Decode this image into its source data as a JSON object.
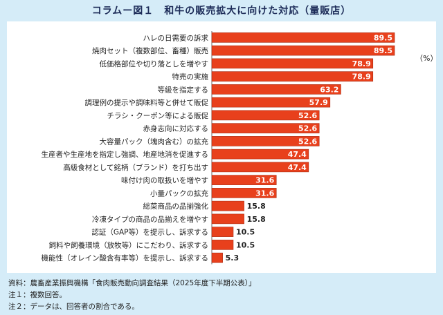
{
  "title": "コラムー図１　和牛の販売拡大に向けた対応（量販店）",
  "chart_data": {
    "type": "bar",
    "orientation": "horizontal",
    "title": "コラムー図１　和牛の販売拡大に向けた対応（量販店）",
    "unit": "（%）",
    "categories": [
      "ハレの日需要の訴求",
      "焼肉セット（複数部位、畜種）販売",
      "低価格部位や切り落としを増やす",
      "特売の実施",
      "等級を指定する",
      "調理例の提示や調味料等と併せて販促",
      "チラシ・クーポン等による販促",
      "赤身志向に対応する",
      "大容量パック（塊肉含む）の拡充",
      "生産者や生産地を指定し強調、地産地消を促進する",
      "高級食材として銘柄（ブランド）を打ち出す",
      "味付け肉の取扱いを増やす",
      "小量パックの拡充",
      "総菜商品の品揃強化",
      "冷凍タイプの商品の品揃えを増やす",
      "認証（GAP等）を提示し、訴求する",
      "飼料や飼養環境（放牧等）にこだわり、訴求する",
      "機能性（オレイン酸含有率等）を提示し、訴求する"
    ],
    "values": [
      89.5,
      89.5,
      78.9,
      78.9,
      63.2,
      57.9,
      52.6,
      52.6,
      52.6,
      47.4,
      47.4,
      31.6,
      31.6,
      15.8,
      15.8,
      10.5,
      10.5,
      5.3
    ],
    "xlim": [
      0,
      100
    ],
    "bar_color": "#e8401c"
  },
  "notes": [
    "資料：農畜産業振興機構「食肉販売動向調査結果（2025年度下半期公表）」",
    "注１：複数回答。",
    "注２：データは、回答者の割合である。"
  ]
}
